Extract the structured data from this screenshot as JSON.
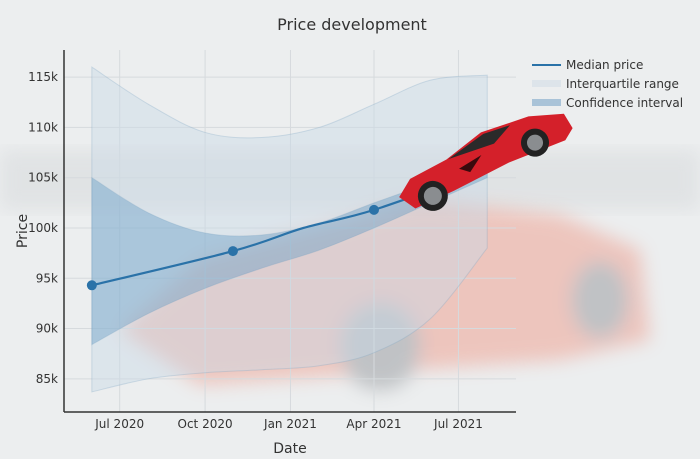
{
  "chart_data": {
    "type": "line",
    "title": "Price development",
    "xlabel": "Date",
    "ylabel": "Price",
    "xlim": [
      "2020-05-02",
      "2021-09-01"
    ],
    "ylim": [
      81700,
      117700
    ],
    "x_ticks": [
      {
        "date": "2020-07-01",
        "label": "Jul 2020"
      },
      {
        "date": "2020-10-01",
        "label": "Oct 2020"
      },
      {
        "date": "2021-01-01",
        "label": "Jan 2021"
      },
      {
        "date": "2021-04-01",
        "label": "Apr 2021"
      },
      {
        "date": "2021-07-01",
        "label": "Jul 2021"
      }
    ],
    "y_ticks": [
      {
        "value": 85000,
        "label": "85k"
      },
      {
        "value": 90000,
        "label": "90k"
      },
      {
        "value": 95000,
        "label": "95k"
      },
      {
        "value": 100000,
        "label": "100k"
      },
      {
        "value": 105000,
        "label": "105k"
      },
      {
        "value": 110000,
        "label": "110k"
      },
      {
        "value": 115000,
        "label": "115k"
      }
    ],
    "grid": true,
    "legend_position": "top-right",
    "series": [
      {
        "name": "Median price",
        "kind": "line",
        "color": "#2a72a8",
        "x": [
          "2020-06-01",
          "2020-10-31",
          "2021-01-15",
          "2021-04-01",
          "2021-08-01"
        ],
        "y": [
          94300,
          97700,
          100000,
          101800,
          105800
        ],
        "markers": [
          true,
          true,
          false,
          true,
          false
        ]
      },
      {
        "name": "Interquartile range",
        "kind": "band",
        "color": "#c9d9e6",
        "x": [
          "2020-06-01",
          "2020-08-01",
          "2020-10-01",
          "2020-12-01",
          "2021-02-01",
          "2021-04-01",
          "2021-06-01",
          "2021-08-01"
        ],
        "upper": [
          116000,
          112300,
          109500,
          109000,
          110000,
          112300,
          114700,
          115200
        ],
        "lower": [
          83700,
          85000,
          85600,
          85900,
          86300,
          87600,
          91000,
          98000
        ]
      },
      {
        "name": "Confidence interval",
        "kind": "band",
        "color": "#7fabcb",
        "x": [
          "2020-06-01",
          "2020-08-01",
          "2020-10-01",
          "2020-12-01",
          "2021-02-01",
          "2021-04-01",
          "2021-06-01",
          "2021-08-01"
        ],
        "upper": [
          105000,
          101500,
          99500,
          99300,
          100500,
          102500,
          104500,
          106500
        ],
        "lower": [
          88400,
          91500,
          94000,
          96000,
          97800,
          100000,
          102500,
          105000
        ]
      }
    ]
  },
  "background": {
    "sky": "#eceeef",
    "car_color": "#e0312f"
  }
}
